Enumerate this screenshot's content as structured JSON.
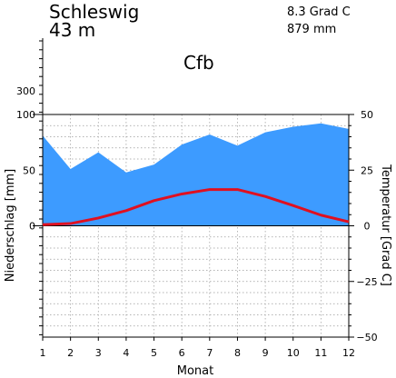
{
  "station": {
    "name": "Schleswig",
    "elevation": "43 m",
    "mean_temp": "8.3 Grad C",
    "annual_precip": "879 mm",
    "climate_class": "Cfb"
  },
  "axes": {
    "xlabel": "Monat",
    "ylabel_left": "Niederschlag [mm]",
    "ylabel_right": "Temperatur [Grad C]",
    "left_ticks": [
      "100",
      "50",
      "0"
    ],
    "left_extra_tick": "300",
    "right_ticks": [
      "50",
      "25",
      "0",
      "−25",
      "−50"
    ],
    "x_ticks": [
      "1",
      "2",
      "3",
      "4",
      "5",
      "6",
      "7",
      "8",
      "9",
      "10",
      "11",
      "12"
    ]
  },
  "colors": {
    "precip_fill": "#3d9bff",
    "temp_line": "#e01020",
    "grid": "#9a9a9a"
  },
  "chart_data": {
    "type": "area",
    "x": [
      1,
      2,
      3,
      4,
      5,
      6,
      7,
      8,
      9,
      10,
      11,
      12
    ],
    "series": [
      {
        "name": "Niederschlag",
        "unit": "mm",
        "values": [
          81,
          51,
          66,
          48,
          55,
          73,
          82,
          72,
          84,
          89,
          92,
          87
        ]
      },
      {
        "name": "Temperatur",
        "unit": "Grad C",
        "values": [
          0.5,
          1.0,
          3.5,
          6.8,
          11.3,
          14.3,
          16.3,
          16.3,
          13.2,
          9.1,
          4.8,
          1.8
        ]
      }
    ],
    "precip_ylim": [
      0,
      100
    ],
    "temp_ylim": [
      -50,
      50
    ],
    "xlim": [
      1,
      12
    ],
    "grid": true
  }
}
